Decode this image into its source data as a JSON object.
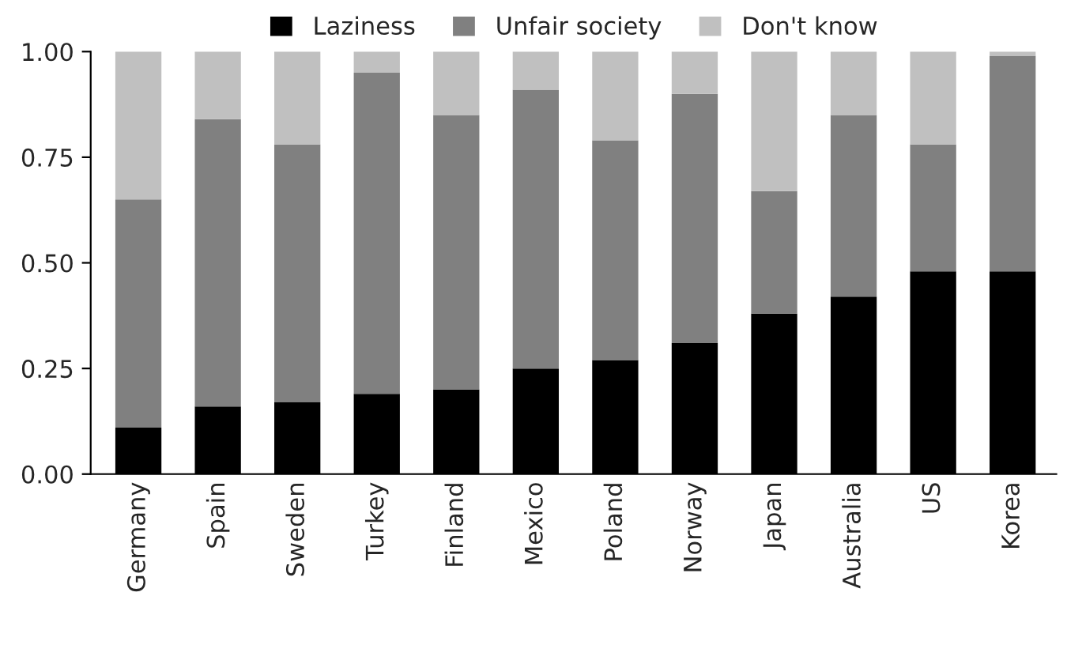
{
  "chart_data": {
    "type": "bar",
    "stacked": true,
    "categories": [
      "Germany",
      "Spain",
      "Sweden",
      "Turkey",
      "Finland",
      "Mexico",
      "Poland",
      "Norway",
      "Japan",
      "Australia",
      "US",
      "Korea"
    ],
    "series": [
      {
        "name": "Laziness",
        "color": "#000000",
        "values": [
          0.11,
          0.16,
          0.17,
          0.19,
          0.2,
          0.25,
          0.27,
          0.31,
          0.38,
          0.42,
          0.48,
          0.48
        ]
      },
      {
        "name": "Unfair society",
        "color": "#808080",
        "values": [
          0.54,
          0.68,
          0.61,
          0.76,
          0.65,
          0.66,
          0.52,
          0.59,
          0.29,
          0.43,
          0.3,
          0.51
        ]
      },
      {
        "name": "Don't know",
        "color": "#c0c0c0",
        "values": [
          0.35,
          0.16,
          0.22,
          0.05,
          0.15,
          0.09,
          0.21,
          0.1,
          0.33,
          0.15,
          0.22,
          0.01
        ]
      }
    ],
    "ylim": [
      0,
      1
    ],
    "yticks": [
      {
        "value": 0,
        "label": "0.00"
      },
      {
        "value": 0.25,
        "label": "0.25"
      },
      {
        "value": 0.5,
        "label": "0.50"
      },
      {
        "value": 0.75,
        "label": "0.75"
      },
      {
        "value": 1,
        "label": "1.00"
      }
    ],
    "grid": false,
    "legend": "top"
  }
}
